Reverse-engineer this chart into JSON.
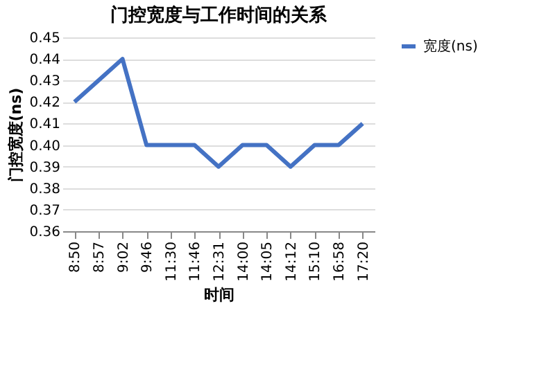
{
  "chart_data": {
    "type": "line",
    "title": "门控宽度与工作时间的关系",
    "xlabel": "时间",
    "ylabel": "门控宽度(ns)",
    "categories": [
      "8:50",
      "8:57",
      "9:02",
      "9:46",
      "11:30",
      "11:46",
      "12:31",
      "14:00",
      "14:05",
      "14:12",
      "15:10",
      "16:58",
      "17:20"
    ],
    "series": [
      {
        "name": "宽度(ns)",
        "color": "#4472c4",
        "values": [
          0.42,
          0.43,
          0.44,
          0.4,
          0.4,
          0.4,
          0.39,
          0.4,
          0.4,
          0.39,
          0.4,
          0.4,
          0.41
        ]
      }
    ],
    "ylim": [
      0.36,
      0.45
    ],
    "yticks": [
      0.36,
      0.37,
      0.38,
      0.39,
      {
        "value": 0.4,
        "label": "0.40"
      },
      0.41,
      0.42,
      0.43,
      0.44,
      0.45
    ],
    "grid": "y",
    "legend": "right",
    "marker": "none",
    "line_style": "solid"
  }
}
